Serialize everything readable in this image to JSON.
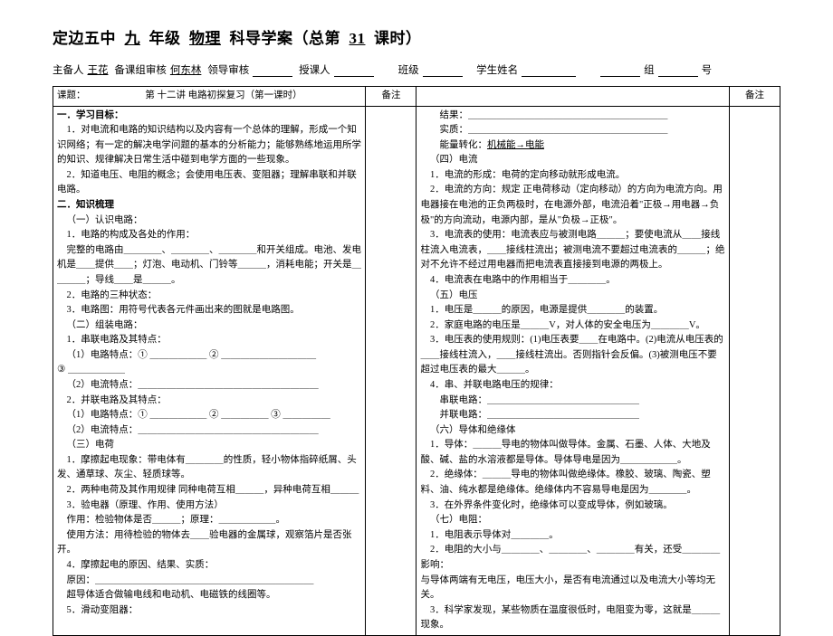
{
  "title": {
    "school": "定边五中",
    "grade": "九",
    "grade_suffix": "年级",
    "subject": "物理",
    "subject_suffix": "科导学案（总第",
    "lesson_no": "31",
    "tail": "课时）"
  },
  "author_line": {
    "l1": "主备人",
    "p1": "王花",
    "l2": "备课组审核",
    "p2": "何东林",
    "l3": "领导审核",
    "l4": "授课人",
    "l5": "班级",
    "l6": "学生姓名",
    "l7": "组",
    "l8": "号"
  },
  "header": {
    "lesson_label": "课题：",
    "lesson_title": "第 十二讲    电路初探复习（第一课时）",
    "note": "备注",
    "note2": "备注"
  },
  "left": {
    "h1": "一．学习目标：",
    "p1": "1．对电流和电路的知识结构以及内容有一个总体的理解，形成一个知识网络；有一定的解决电学问题的基本的分析能力；能够熟练地运用所学的知识、规律解决日常生活中碰到电学方面的一些现象。",
    "p2": "2．知道电压、电阻的概念；会使用电压表、变阻器；理解串联和并联电路。",
    "h2": "二．知识梳理",
    "s1": "（一）认识电路：",
    "s1_1": "1．电路的构成及各处的作用：",
    "s1_1a": "完整的电路由＿＿＿＿、＿＿＿＿、＿＿＿＿和开关组成。电池、发电机是＿＿提供＿＿；灯泡、电动机、门铃等＿＿＿，消耗电能；开关是＿＿＿＿；导线＿＿是＿＿＿。",
    "s1_2": "2．电路的三种状态：",
    "s1_3": "3．电路图：用符号代表各元件画出来的图就是电路图。",
    "s2": "（二）组装电路：",
    "s2_1": "1．串联电路及其特点：",
    "s2_1a": "（1）电路特点：① ＿＿＿＿＿＿ ② ＿＿＿＿＿＿＿＿＿＿",
    "s2_1b": "③ ＿＿＿＿＿＿",
    "s2_1c": "（2）电流特点：＿＿＿＿＿＿＿＿＿＿＿＿＿＿＿＿＿＿＿",
    "s2_2": "2．并联电路及其特点：",
    "s2_2a": "（1）电路特点：① ＿＿＿＿＿＿ ② ＿＿＿＿＿ ③ ＿＿＿＿＿",
    "s2_2b": "（2）电流特点：＿＿＿＿＿＿＿＿＿＿＿＿＿＿＿＿＿＿＿",
    "s3": "（三）电荷",
    "s3_1": "1．摩擦起电现象：带电体有＿＿＿＿的性质，轻小物体指碎纸屑、头发、通草球、灰尘、轻质球等。",
    "s3_2": "2．两种电荷及其作用规律  同种电荷互相＿＿＿，异种电荷互相＿＿＿",
    "s3_3": "3．验电器（原理、作用、使用方法）",
    "s3_3a": "作用：检验物体是否＿＿＿；原理：＿＿＿＿＿＿。",
    "s3_3b": "使用方法：用待检验的物体去＿＿验电器的金属球，观察箔片是否张开。",
    "s3_4": "4．摩擦起电的原因、结果、实质：",
    "s3_4a": "原因：＿＿＿＿＿＿＿＿＿＿＿＿＿＿＿＿＿＿＿＿＿＿＿",
    "s4": "超导体适合做输电线和电动机、电磁铁的线圈等。",
    "s5": "5．滑动变阻器："
  },
  "right": {
    "r1": "结果：＿＿＿＿＿＿＿＿＿＿＿＿＿＿＿＿＿＿＿＿＿",
    "r2": "实质：＿＿＿＿＿＿＿＿＿＿＿＿＿＿＿＿＿＿＿＿＿",
    "r3a": "能量转化：",
    "r3b": "机械能→电能",
    "r4": "（四）电流",
    "r4_1": "1．电流的形成：电荷的定向移动就形成电流。",
    "r4_2": "2．电流的方向：规定 正电荷移动（定向移动）的方向为电流方向。用电器接在电池的正负两极时，在电源外部，电流沿着\"正极→用电器→负极\"的方向流动，电源内部，是从\"负极→正极\"。",
    "r4_3": "3．电流表的使用：电流表应与被测电路＿＿＿；要使电流从＿＿接线柱流入电流表，＿＿接线柱流出；被测电流不要超过电流表的＿＿＿；绝对不允许不经过用电器而把电流表直接接到电源的两极上。",
    "r4_4": "4．电流表在电路中的作用相当于＿＿＿＿。",
    "r5": "（五）电压",
    "r5_1": "1．电压是＿＿＿的原因，电源是提供＿＿＿＿的装置。",
    "r5_2": "2．家庭电路的电压是＿＿＿V，对人体的安全电压为＿＿＿＿V。",
    "r5_3": "3．电压表的使用规则：(1)电压表要＿＿在电路中。(2)电流从电压表的＿＿接线柱流入，＿＿接线柱流出。否则指针会反偏。(3)被测电压不要超过电压表的最大＿＿＿。",
    "r5_4": "4．串、并联电路电压的规律：",
    "r5_4a": "串联电路：＿＿＿＿＿＿＿＿＿＿＿＿＿＿＿＿",
    "r5_4b": "并联电路：＿＿＿＿＿＿＿＿＿＿＿＿＿＿＿＿",
    "r6": "（六）导体和绝缘体",
    "r6_1": "1．导体：＿＿＿导电的物体叫做导体。金属、石墨、人体、大地及酸、碱、盐的水溶液都是导体。导体导电是因为＿＿＿＿＿＿。",
    "r6_2": "2．绝缘体：＿＿＿导电的物体叫做绝缘体。橡胶、玻璃、陶瓷、塑料、油、纯水都是绝缘体。绝缘体内不容易导电是因为＿＿＿＿。",
    "r6_3": "3．在外界条件变化时，绝缘体可以变成导体，例如玻璃。",
    "r7": "（七）电阻：",
    "r7_1": "1．电阻表示导体对＿＿＿＿。",
    "r7_2": "2．电阻的大小与＿＿＿＿、＿＿＿＿、＿＿＿＿有关，还受＿＿＿＿影响：",
    "r7_3": "与导体两端有无电压，电压大小，是否有电流通过以及电流大小等均无关。",
    "r7_4": "3．科学家发现，某些物质在温度很低时，电阻变为零，这就是＿＿＿现象。"
  }
}
